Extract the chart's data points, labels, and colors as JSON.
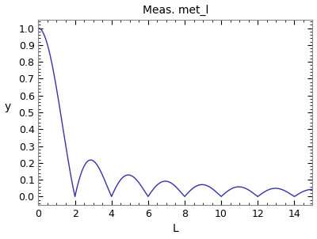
{
  "title": "Meas. met_l",
  "xlabel": "L",
  "ylabel": "y",
  "xlim": [
    0,
    15
  ],
  "ylim": [
    -0.05,
    1.05
  ],
  "xticks": [
    0,
    2,
    4,
    6,
    8,
    10,
    12,
    14
  ],
  "yticks": [
    0.0,
    0.1,
    0.2,
    0.3,
    0.4,
    0.5,
    0.6,
    0.7,
    0.8,
    0.9,
    1.0
  ],
  "line_color": "#3333aa",
  "bg_color": "#ffffff",
  "title_fontsize": 10,
  "axis_fontsize": 10,
  "tick_fontsize": 9,
  "spine_color": "#888888"
}
